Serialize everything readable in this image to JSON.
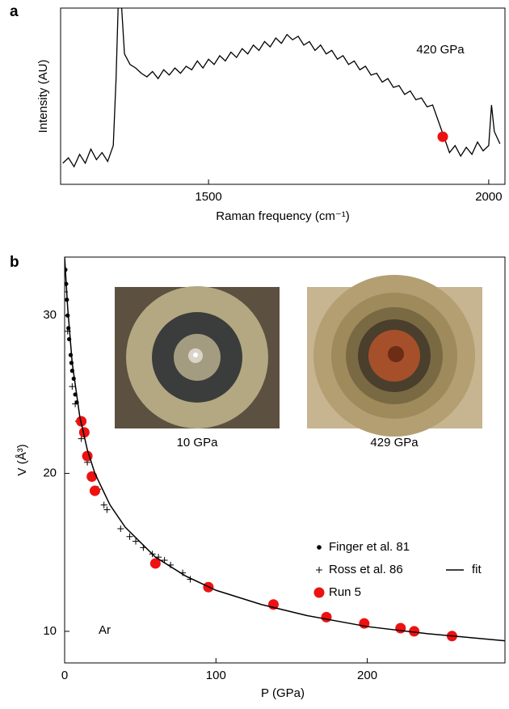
{
  "chart_data": [
    {
      "type": "line",
      "panel_label": "a",
      "xlabel": "Raman frequency (cm⁻¹)",
      "ylabel": "Intensity (AU)",
      "annotation": "420 GPa",
      "xlim": [
        1236,
        2029
      ],
      "xticks": [
        1500,
        2000
      ],
      "ylim": [
        0,
        100
      ],
      "color": "#000000",
      "x": [
        1240,
        1250,
        1260,
        1270,
        1280,
        1290,
        1300,
        1310,
        1320,
        1330,
        1335,
        1340,
        1345,
        1350,
        1360,
        1370,
        1380,
        1390,
        1400,
        1410,
        1420,
        1430,
        1440,
        1450,
        1460,
        1470,
        1480,
        1490,
        1500,
        1510,
        1520,
        1530,
        1540,
        1550,
        1560,
        1570,
        1580,
        1590,
        1600,
        1610,
        1620,
        1630,
        1640,
        1650,
        1660,
        1670,
        1680,
        1690,
        1700,
        1710,
        1720,
        1730,
        1740,
        1750,
        1760,
        1770,
        1780,
        1790,
        1800,
        1810,
        1820,
        1830,
        1840,
        1850,
        1860,
        1870,
        1880,
        1890,
        1900,
        1910,
        1920,
        1930,
        1940,
        1950,
        1960,
        1970,
        1980,
        1990,
        2000,
        2005,
        2010,
        2020
      ],
      "values": [
        12,
        15,
        10,
        17,
        12,
        20,
        14,
        18,
        13,
        22,
        60,
        115,
        100,
        74,
        68,
        66,
        63,
        61,
        64,
        60,
        65,
        62,
        66,
        63,
        67,
        65,
        70,
        66,
        71,
        68,
        73,
        70,
        75,
        72,
        77,
        74,
        79,
        76,
        81,
        78,
        83,
        80,
        85,
        82,
        84,
        79,
        81,
        76,
        79,
        74,
        76,
        71,
        73,
        68,
        70,
        65,
        67,
        62,
        63,
        58,
        60,
        55,
        56,
        51,
        53,
        48,
        49,
        44,
        45,
        36,
        27,
        18,
        22,
        16,
        21,
        17,
        24,
        19,
        22,
        45,
        30,
        23
      ],
      "highlight": {
        "x": 1918,
        "value": 27,
        "color": "#ee1111"
      }
    },
    {
      "type": "scatter",
      "panel_label": "b",
      "xlabel": "P (GPa)",
      "ylabel": "V (Å³)",
      "annotation": "Ar",
      "xlim": [
        0,
        291
      ],
      "xticks": [
        0,
        100,
        200
      ],
      "ylim": [
        8,
        33.7
      ],
      "yticks": [
        10,
        20,
        30
      ],
      "insets": [
        {
          "label": "10 GPa"
        },
        {
          "label": "429 GPa"
        }
      ],
      "series": [
        {
          "name": "Finger et al. 81",
          "marker": "dot",
          "color": "#000000",
          "x": [
            0.5,
            1,
            1.5,
            2,
            2.5,
            3,
            4,
            4.5,
            5,
            6,
            7,
            8
          ],
          "values": [
            32.9,
            32,
            31,
            30,
            29.2,
            28.5,
            27.5,
            27,
            26.5,
            26,
            25,
            24.5
          ]
        },
        {
          "name": "Ross et al. 86",
          "marker": "plus",
          "color": "#000000",
          "x": [
            0,
            2,
            5,
            7,
            9,
            11,
            14,
            15,
            22,
            26,
            28,
            37,
            43,
            47,
            52,
            58,
            62,
            66,
            70,
            78,
            83
          ],
          "values": [
            31.5,
            29,
            25.5,
            24.4,
            23.3,
            22.2,
            21,
            20.7,
            19,
            18,
            17.7,
            16.5,
            16,
            15.7,
            15.3,
            14.9,
            14.7,
            14.5,
            14.2,
            13.7,
            13.3
          ]
        },
        {
          "name": "Run 5",
          "marker": "circle",
          "color": "#ee1111",
          "x": [
            11,
            13,
            15,
            18,
            20,
            60,
            95,
            138,
            173,
            198,
            222,
            231,
            256
          ],
          "values": [
            23.3,
            22.6,
            21.1,
            19.8,
            18.9,
            14.3,
            12.8,
            11.7,
            10.9,
            10.5,
            10.2,
            10.0,
            9.7
          ]
        },
        {
          "name": "fit",
          "marker": "line",
          "color": "#000000",
          "x": [
            0,
            2,
            5,
            10,
            15,
            20,
            30,
            40,
            60,
            80,
            100,
            130,
            160,
            200,
            240,
            291
          ],
          "values": [
            33.7,
            30.5,
            27,
            23.6,
            21.5,
            20,
            18,
            16.6,
            14.7,
            13.5,
            12.6,
            11.7,
            11.0,
            10.3,
            9.85,
            9.4
          ]
        }
      ]
    }
  ]
}
